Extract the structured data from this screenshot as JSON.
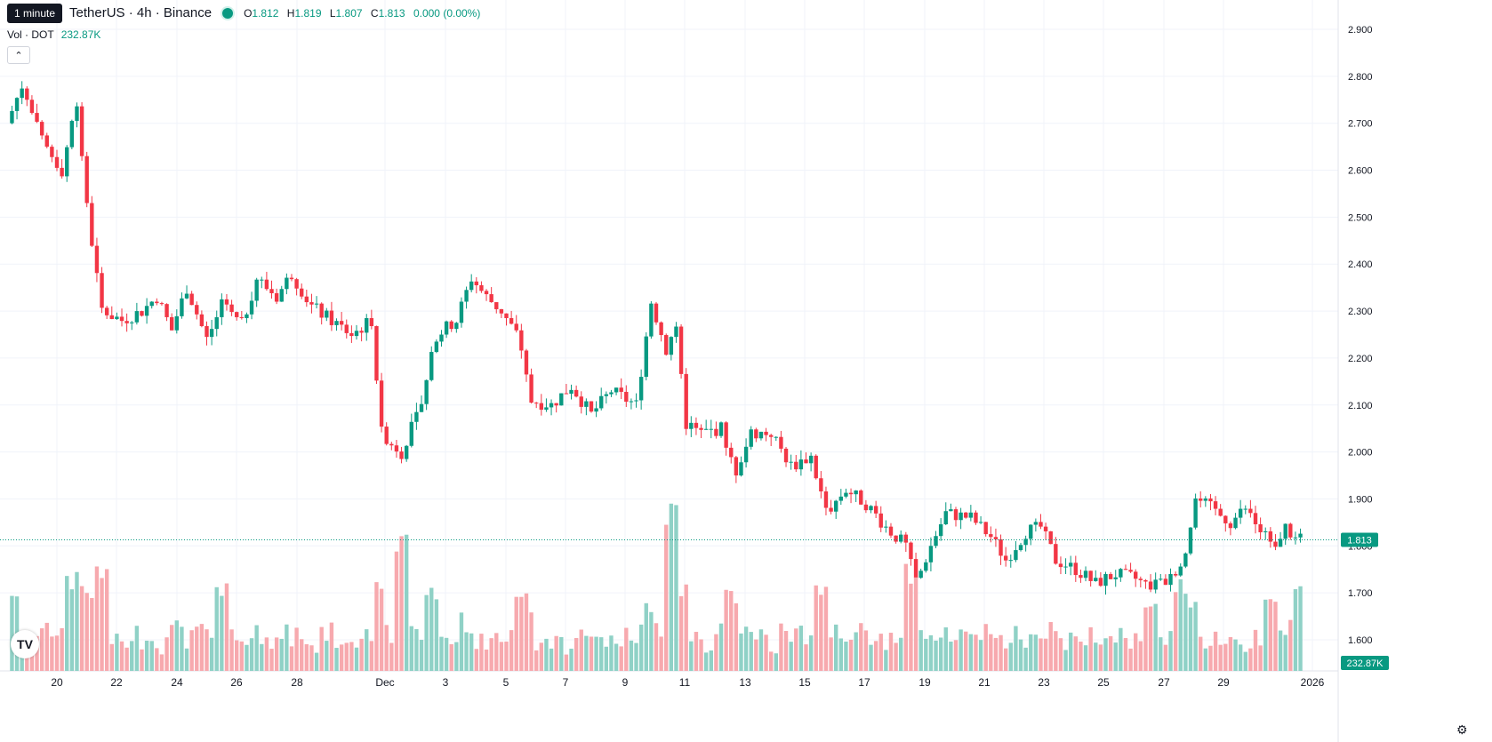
{
  "header": {
    "tooltip": "1 minute",
    "symbol": "TetherUS · 4h · Binance",
    "open_label": "O",
    "open": "1.812",
    "high_label": "H",
    "high": "1.819",
    "low_label": "L",
    "low": "1.807",
    "close_label": "C",
    "close": "1.813",
    "change": "0.000 (0.00%)"
  },
  "volume_legend": {
    "label": "Vol · DOT",
    "value": "232.87K"
  },
  "badges": {
    "price": "1.813",
    "volume": "232.87K"
  },
  "icons": {
    "collapse": "chevron-up-icon",
    "logo": "tradingview-logo",
    "settings": "settings-icon"
  },
  "colors": {
    "up": "#089981",
    "down": "#f23645",
    "up_volume": "#8fd1c6",
    "down_volume": "#f7a9ae",
    "grid": "#f0f3fa",
    "last_price_line": "#089981"
  },
  "chart_data": {
    "type": "candlestick",
    "interval": "4h",
    "ylim": [
      1.55,
      2.95
    ],
    "y_ticks": [
      "2.900",
      "2.800",
      "2.700",
      "2.600",
      "2.500",
      "2.400",
      "2.300",
      "2.200",
      "2.100",
      "2.000",
      "1.900",
      "1.800",
      "1.700",
      "1.600"
    ],
    "x_ticks": [
      "20",
      "22",
      "24",
      "26",
      "28",
      "Dec",
      "3",
      "5",
      "7",
      "9",
      "11",
      "13",
      "15",
      "17",
      "19",
      "21",
      "23",
      "25",
      "27",
      "29",
      "2026"
    ],
    "last_price": 1.813,
    "anchors": [
      [
        "Nov 18 12:00",
        2.7
      ],
      [
        "Nov 19 00:00",
        2.78
      ],
      [
        "Nov 19 16:00",
        2.66
      ],
      [
        "Nov 20 08:00",
        2.6
      ],
      [
        "Nov 20 20:00",
        2.75
      ],
      [
        "Nov 21 04:00",
        2.52
      ],
      [
        "Nov 21 16:00",
        2.3
      ],
      [
        "Nov 22 08:00",
        2.28
      ],
      [
        "Nov 23 00:00",
        2.3
      ],
      [
        "Nov 23 12:00",
        2.33
      ],
      [
        "Nov 24 00:00",
        2.26
      ],
      [
        "Nov 24 12:00",
        2.35
      ],
      [
        "Nov 25 04:00",
        2.24
      ],
      [
        "Nov 25 16:00",
        2.31
      ],
      [
        "Nov 26 08:00",
        2.27
      ],
      [
        "Nov 26 20:00",
        2.37
      ],
      [
        "Nov 27 12:00",
        2.33
      ],
      [
        "Nov 28 00:00",
        2.38
      ],
      [
        "Nov 28 16:00",
        2.31
      ],
      [
        "Nov 29 08:00",
        2.28
      ],
      [
        "Nov 30 00:00",
        2.25
      ],
      [
        "Nov 30 16:00",
        2.28
      ],
      [
        "Dec 1 00:00",
        2.04
      ],
      [
        "Dec 1 16:00",
        2.0
      ],
      [
        "Dec 2 08:00",
        2.1
      ],
      [
        "Dec 2 20:00",
        2.25
      ],
      [
        "Dec 3 12:00",
        2.28
      ],
      [
        "Dec 4 00:00",
        2.37
      ],
      [
        "Dec 4 12:00",
        2.33
      ],
      [
        "Dec 5 00:00",
        2.3
      ],
      [
        "Dec 5 12:00",
        2.25
      ],
      [
        "Dec 6 00:00",
        2.11
      ],
      [
        "Dec 6 16:00",
        2.1
      ],
      [
        "Dec 7 08:00",
        2.14
      ],
      [
        "Dec 8 00:00",
        2.08
      ],
      [
        "Dec 8 16:00",
        2.13
      ],
      [
        "Dec 9 12:00",
        2.1
      ],
      [
        "Dec 10 00:00",
        2.32
      ],
      [
        "Dec 10 12:00",
        2.22
      ],
      [
        "Dec 10 20:00",
        2.27
      ],
      [
        "Dec 11 04:00",
        2.06
      ],
      [
        "Dec 11 16:00",
        2.04
      ],
      [
        "Dec 12 08:00",
        2.05
      ],
      [
        "Dec 12 20:00",
        1.96
      ],
      [
        "Dec 13 08:00",
        2.04
      ],
      [
        "Dec 14 00:00",
        2.04
      ],
      [
        "Dec 14 16:00",
        1.97
      ],
      [
        "Dec 15 08:00",
        1.99
      ],
      [
        "Dec 15 20:00",
        1.87
      ],
      [
        "Dec 16 12:00",
        1.92
      ],
      [
        "Dec 17 04:00",
        1.89
      ],
      [
        "Dec 17 20:00",
        1.84
      ],
      [
        "Dec 18 12:00",
        1.8
      ],
      [
        "Dec 18 20:00",
        1.72
      ],
      [
        "Dec 19 08:00",
        1.8
      ],
      [
        "Dec 19 20:00",
        1.87
      ],
      [
        "Dec 20 16:00",
        1.86
      ],
      [
        "Dec 21 08:00",
        1.82
      ],
      [
        "Dec 21 20:00",
        1.77
      ],
      [
        "Dec 22 12:00",
        1.83
      ],
      [
        "Dec 23 00:00",
        1.84
      ],
      [
        "Dec 23 12:00",
        1.77
      ],
      [
        "Dec 24 04:00",
        1.75
      ],
      [
        "Dec 24 20:00",
        1.72
      ],
      [
        "Dec 25 12:00",
        1.74
      ],
      [
        "Dec 26 04:00",
        1.73
      ],
      [
        "Dec 26 16:00",
        1.71
      ],
      [
        "Dec 27 08:00",
        1.73
      ],
      [
        "Dec 27 20:00",
        1.79
      ],
      [
        "Dec 28 04:00",
        1.9
      ],
      [
        "Dec 28 16:00",
        1.88
      ],
      [
        "Dec 29 08:00",
        1.85
      ],
      [
        "Dec 29 20:00",
        1.88
      ],
      [
        "Dec 30 08:00",
        1.83
      ],
      [
        "Dec 30 20:00",
        1.81
      ],
      [
        "Dec 31 04:00",
        1.84
      ],
      [
        "Dec 31 12:00",
        1.813
      ]
    ],
    "volume_peaks_k": [
      [
        "Nov 18",
        220
      ],
      [
        "Nov 20",
        260
      ],
      [
        "Nov 21",
        280
      ],
      [
        "Nov 25",
        240
      ],
      [
        "Dec 1",
        380
      ],
      [
        "Dec 2",
        230
      ],
      [
        "Dec 5",
        220
      ],
      [
        "Dec 10",
        440
      ],
      [
        "Dec 12",
        220
      ],
      [
        "Dec 15",
        240
      ],
      [
        "Dec 18",
        280
      ],
      [
        "Dec 26",
        200
      ],
      [
        "Dec 27",
        240
      ],
      [
        "Dec 30",
        190
      ],
      [
        "Dec 31",
        232.87
      ]
    ]
  }
}
